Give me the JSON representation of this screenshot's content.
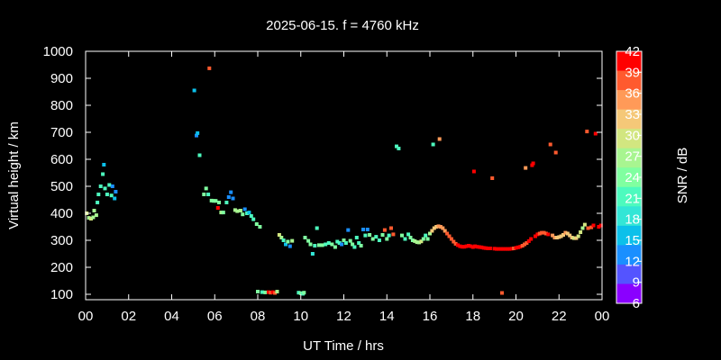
{
  "chart_data": {
    "type": "scatter",
    "title": "2025-06-15. f = 4760 kHz",
    "xlabel": "UT Time / hrs",
    "ylabel": "Virtual height / km",
    "xlim": [
      0,
      24
    ],
    "ylim": [
      80,
      1000
    ],
    "x_ticks": [
      "00",
      "02",
      "04",
      "06",
      "08",
      "10",
      "12",
      "14",
      "16",
      "18",
      "20",
      "22",
      "00"
    ],
    "y_ticks": [
      100,
      200,
      300,
      400,
      500,
      600,
      700,
      800,
      900,
      1000
    ],
    "grid": false,
    "colorbar": {
      "label": "SNR / dB",
      "range": [
        6,
        42
      ],
      "ticks": [
        6,
        9,
        12,
        15,
        18,
        21,
        24,
        27,
        30,
        33,
        36,
        39,
        42
      ],
      "colors": [
        "#8a00ff",
        "#5454ff",
        "#1a8fff",
        "#0cc0ea",
        "#33e6d6",
        "#4dfabe",
        "#80ffa0",
        "#a8f590",
        "#d2e680",
        "#f5c878",
        "#ff9a58",
        "#ff5a2e",
        "#ff0000"
      ]
    },
    "points": [
      {
        "x": 0.05,
        "y": 400,
        "snr": 30
      },
      {
        "x": 0.15,
        "y": 383,
        "snr": 28
      },
      {
        "x": 0.25,
        "y": 380,
        "snr": 29
      },
      {
        "x": 0.35,
        "y": 385,
        "snr": 28
      },
      {
        "x": 0.4,
        "y": 410,
        "snr": 26
      },
      {
        "x": 0.5,
        "y": 393,
        "snr": 27
      },
      {
        "x": 0.55,
        "y": 440,
        "snr": 20
      },
      {
        "x": 0.6,
        "y": 470,
        "snr": 21
      },
      {
        "x": 0.7,
        "y": 500,
        "snr": 22
      },
      {
        "x": 0.8,
        "y": 545,
        "snr": 21
      },
      {
        "x": 0.85,
        "y": 580,
        "snr": 14
      },
      {
        "x": 0.9,
        "y": 492,
        "snr": 20
      },
      {
        "x": 1.0,
        "y": 470,
        "snr": 22
      },
      {
        "x": 1.1,
        "y": 505,
        "snr": 21
      },
      {
        "x": 1.2,
        "y": 466,
        "snr": 20
      },
      {
        "x": 1.25,
        "y": 500,
        "snr": 13
      },
      {
        "x": 1.35,
        "y": 455,
        "snr": 14
      },
      {
        "x": 1.4,
        "y": 480,
        "snr": 12
      },
      {
        "x": 5.05,
        "y": 855,
        "snr": 14
      },
      {
        "x": 5.15,
        "y": 688,
        "snr": 13
      },
      {
        "x": 5.2,
        "y": 697,
        "snr": 14
      },
      {
        "x": 5.3,
        "y": 615,
        "snr": 22
      },
      {
        "x": 5.5,
        "y": 470,
        "snr": 24
      },
      {
        "x": 5.6,
        "y": 492,
        "snr": 23
      },
      {
        "x": 5.7,
        "y": 470,
        "snr": 22
      },
      {
        "x": 5.75,
        "y": 937,
        "snr": 40
      },
      {
        "x": 5.85,
        "y": 447,
        "snr": 25
      },
      {
        "x": 5.95,
        "y": 446,
        "snr": 24
      },
      {
        "x": 6.05,
        "y": 446,
        "snr": 23
      },
      {
        "x": 6.15,
        "y": 420,
        "snr": 42
      },
      {
        "x": 6.2,
        "y": 440,
        "snr": 23
      },
      {
        "x": 6.3,
        "y": 403,
        "snr": 26
      },
      {
        "x": 6.4,
        "y": 403,
        "snr": 25
      },
      {
        "x": 6.55,
        "y": 440,
        "snr": 20
      },
      {
        "x": 6.65,
        "y": 460,
        "snr": 12
      },
      {
        "x": 6.75,
        "y": 478,
        "snr": 13
      },
      {
        "x": 6.85,
        "y": 455,
        "snr": 11
      },
      {
        "x": 6.95,
        "y": 412,
        "snr": 28
      },
      {
        "x": 7.05,
        "y": 408,
        "snr": 27
      },
      {
        "x": 7.2,
        "y": 410,
        "snr": 26
      },
      {
        "x": 7.3,
        "y": 396,
        "snr": 24
      },
      {
        "x": 7.4,
        "y": 415,
        "snr": 13
      },
      {
        "x": 7.5,
        "y": 400,
        "snr": 22
      },
      {
        "x": 7.6,
        "y": 403,
        "snr": 14
      },
      {
        "x": 7.7,
        "y": 390,
        "snr": 22
      },
      {
        "x": 7.8,
        "y": 378,
        "snr": 21
      },
      {
        "x": 7.95,
        "y": 360,
        "snr": 23
      },
      {
        "x": 8.1,
        "y": 350,
        "snr": 24
      },
      {
        "x": 8.0,
        "y": 110,
        "snr": 24
      },
      {
        "x": 8.2,
        "y": 108,
        "snr": 22
      },
      {
        "x": 8.35,
        "y": 107,
        "snr": 24
      },
      {
        "x": 8.5,
        "y": 108,
        "snr": 42
      },
      {
        "x": 8.6,
        "y": 106,
        "snr": 40
      },
      {
        "x": 8.7,
        "y": 108,
        "snr": 41
      },
      {
        "x": 8.8,
        "y": 105,
        "snr": 38
      },
      {
        "x": 8.9,
        "y": 110,
        "snr": 28
      },
      {
        "x": 9.0,
        "y": 320,
        "snr": 29
      },
      {
        "x": 9.1,
        "y": 310,
        "snr": 28
      },
      {
        "x": 9.2,
        "y": 300,
        "snr": 22
      },
      {
        "x": 9.3,
        "y": 285,
        "snr": 14
      },
      {
        "x": 9.4,
        "y": 295,
        "snr": 24
      },
      {
        "x": 9.5,
        "y": 278,
        "snr": 13
      },
      {
        "x": 9.6,
        "y": 298,
        "snr": 27
      },
      {
        "x": 9.9,
        "y": 106,
        "snr": 22
      },
      {
        "x": 10.0,
        "y": 104,
        "snr": 23
      },
      {
        "x": 10.1,
        "y": 102,
        "snr": 21
      },
      {
        "x": 10.15,
        "y": 106,
        "snr": 24
      },
      {
        "x": 10.2,
        "y": 310,
        "snr": 23
      },
      {
        "x": 10.35,
        "y": 298,
        "snr": 24
      },
      {
        "x": 10.45,
        "y": 285,
        "snr": 25
      },
      {
        "x": 10.55,
        "y": 250,
        "snr": 19
      },
      {
        "x": 10.65,
        "y": 280,
        "snr": 22
      },
      {
        "x": 10.75,
        "y": 345,
        "snr": 22
      },
      {
        "x": 10.85,
        "y": 282,
        "snr": 23
      },
      {
        "x": 11.0,
        "y": 282,
        "snr": 24
      },
      {
        "x": 11.15,
        "y": 285,
        "snr": 22
      },
      {
        "x": 11.3,
        "y": 290,
        "snr": 21
      },
      {
        "x": 11.45,
        "y": 285,
        "snr": 23
      },
      {
        "x": 11.6,
        "y": 275,
        "snr": 24
      },
      {
        "x": 11.7,
        "y": 295,
        "snr": 22
      },
      {
        "x": 11.8,
        "y": 290,
        "snr": 20
      },
      {
        "x": 11.9,
        "y": 285,
        "snr": 13
      },
      {
        "x": 12.0,
        "y": 300,
        "snr": 24
      },
      {
        "x": 12.1,
        "y": 290,
        "snr": 21
      },
      {
        "x": 12.2,
        "y": 338,
        "snr": 12
      },
      {
        "x": 12.3,
        "y": 298,
        "snr": 23
      },
      {
        "x": 12.4,
        "y": 285,
        "snr": 24
      },
      {
        "x": 12.5,
        "y": 275,
        "snr": 22
      },
      {
        "x": 12.6,
        "y": 310,
        "snr": 22
      },
      {
        "x": 12.7,
        "y": 290,
        "snr": 21
      },
      {
        "x": 12.8,
        "y": 280,
        "snr": 24
      },
      {
        "x": 12.9,
        "y": 340,
        "snr": 11
      },
      {
        "x": 13.0,
        "y": 318,
        "snr": 20
      },
      {
        "x": 13.1,
        "y": 340,
        "snr": 13
      },
      {
        "x": 13.2,
        "y": 320,
        "snr": 24
      },
      {
        "x": 13.35,
        "y": 305,
        "snr": 23
      },
      {
        "x": 13.5,
        "y": 313,
        "snr": 21
      },
      {
        "x": 13.65,
        "y": 300,
        "snr": 22
      },
      {
        "x": 13.8,
        "y": 320,
        "snr": 23
      },
      {
        "x": 13.9,
        "y": 338,
        "snr": 40
      },
      {
        "x": 14.0,
        "y": 305,
        "snr": 24
      },
      {
        "x": 14.1,
        "y": 318,
        "snr": 20
      },
      {
        "x": 14.2,
        "y": 345,
        "snr": 40
      },
      {
        "x": 14.3,
        "y": 322,
        "snr": 38
      },
      {
        "x": 14.45,
        "y": 648,
        "snr": 20
      },
      {
        "x": 14.55,
        "y": 640,
        "snr": 21
      },
      {
        "x": 14.7,
        "y": 318,
        "snr": 24
      },
      {
        "x": 14.85,
        "y": 305,
        "snr": 22
      },
      {
        "x": 15.0,
        "y": 322,
        "snr": 21
      },
      {
        "x": 15.1,
        "y": 310,
        "snr": 23
      },
      {
        "x": 15.2,
        "y": 300,
        "snr": 25
      },
      {
        "x": 15.3,
        "y": 297,
        "snr": 26
      },
      {
        "x": 15.4,
        "y": 293,
        "snr": 27
      },
      {
        "x": 15.5,
        "y": 292,
        "snr": 28
      },
      {
        "x": 15.6,
        "y": 296,
        "snr": 29
      },
      {
        "x": 15.7,
        "y": 305,
        "snr": 24
      },
      {
        "x": 15.8,
        "y": 318,
        "snr": 22
      },
      {
        "x": 15.9,
        "y": 305,
        "snr": 23
      },
      {
        "x": 16.0,
        "y": 325,
        "snr": 27
      },
      {
        "x": 16.1,
        "y": 335,
        "snr": 32
      },
      {
        "x": 16.15,
        "y": 655,
        "snr": 22
      },
      {
        "x": 16.2,
        "y": 345,
        "snr": 33
      },
      {
        "x": 16.3,
        "y": 350,
        "snr": 34
      },
      {
        "x": 16.4,
        "y": 352,
        "snr": 35
      },
      {
        "x": 16.45,
        "y": 675,
        "snr": 35
      },
      {
        "x": 16.5,
        "y": 350,
        "snr": 35
      },
      {
        "x": 16.6,
        "y": 345,
        "snr": 36
      },
      {
        "x": 16.7,
        "y": 335,
        "snr": 37
      },
      {
        "x": 16.8,
        "y": 325,
        "snr": 38
      },
      {
        "x": 16.9,
        "y": 315,
        "snr": 38
      },
      {
        "x": 17.0,
        "y": 305,
        "snr": 39
      },
      {
        "x": 17.1,
        "y": 295,
        "snr": 40
      },
      {
        "x": 17.2,
        "y": 287,
        "snr": 40
      },
      {
        "x": 17.3,
        "y": 282,
        "snr": 41
      },
      {
        "x": 17.4,
        "y": 278,
        "snr": 41
      },
      {
        "x": 17.5,
        "y": 276,
        "snr": 42
      },
      {
        "x": 17.6,
        "y": 276,
        "snr": 42
      },
      {
        "x": 17.7,
        "y": 278,
        "snr": 41
      },
      {
        "x": 17.8,
        "y": 280,
        "snr": 42
      },
      {
        "x": 17.9,
        "y": 278,
        "snr": 41
      },
      {
        "x": 18.0,
        "y": 275,
        "snr": 42
      },
      {
        "x": 18.1,
        "y": 278,
        "snr": 42
      },
      {
        "x": 18.05,
        "y": 555,
        "snr": 42
      },
      {
        "x": 18.2,
        "y": 276,
        "snr": 41
      },
      {
        "x": 18.3,
        "y": 275,
        "snr": 42
      },
      {
        "x": 18.4,
        "y": 274,
        "snr": 42
      },
      {
        "x": 18.5,
        "y": 272,
        "snr": 41
      },
      {
        "x": 18.6,
        "y": 271,
        "snr": 42
      },
      {
        "x": 18.7,
        "y": 270,
        "snr": 42
      },
      {
        "x": 18.8,
        "y": 270,
        "snr": 41
      },
      {
        "x": 18.9,
        "y": 530,
        "snr": 38
      },
      {
        "x": 19.0,
        "y": 269,
        "snr": 42
      },
      {
        "x": 19.1,
        "y": 268,
        "snr": 42
      },
      {
        "x": 19.2,
        "y": 268,
        "snr": 41
      },
      {
        "x": 19.3,
        "y": 268,
        "snr": 42
      },
      {
        "x": 19.35,
        "y": 105,
        "snr": 38
      },
      {
        "x": 19.4,
        "y": 268,
        "snr": 42
      },
      {
        "x": 19.5,
        "y": 268,
        "snr": 41
      },
      {
        "x": 19.6,
        "y": 268,
        "snr": 42
      },
      {
        "x": 19.7,
        "y": 268,
        "snr": 42
      },
      {
        "x": 19.8,
        "y": 269,
        "snr": 41
      },
      {
        "x": 19.9,
        "y": 270,
        "snr": 40
      },
      {
        "x": 20.0,
        "y": 272,
        "snr": 41
      },
      {
        "x": 20.1,
        "y": 274,
        "snr": 42
      },
      {
        "x": 20.2,
        "y": 276,
        "snr": 41
      },
      {
        "x": 20.3,
        "y": 280,
        "snr": 40
      },
      {
        "x": 20.4,
        "y": 285,
        "snr": 39
      },
      {
        "x": 20.45,
        "y": 568,
        "snr": 35
      },
      {
        "x": 20.5,
        "y": 290,
        "snr": 40
      },
      {
        "x": 20.6,
        "y": 297,
        "snr": 41
      },
      {
        "x": 20.7,
        "y": 305,
        "snr": 42
      },
      {
        "x": 20.75,
        "y": 578,
        "snr": 42
      },
      {
        "x": 20.8,
        "y": 585,
        "snr": 41
      },
      {
        "x": 20.9,
        "y": 315,
        "snr": 42
      },
      {
        "x": 21.0,
        "y": 322,
        "snr": 41
      },
      {
        "x": 21.1,
        "y": 325,
        "snr": 40
      },
      {
        "x": 21.2,
        "y": 328,
        "snr": 40
      },
      {
        "x": 21.3,
        "y": 328,
        "snr": 39
      },
      {
        "x": 21.4,
        "y": 325,
        "snr": 40
      },
      {
        "x": 21.5,
        "y": 322,
        "snr": 41
      },
      {
        "x": 21.6,
        "y": 655,
        "snr": 40
      },
      {
        "x": 21.7,
        "y": 318,
        "snr": 37
      },
      {
        "x": 21.8,
        "y": 310,
        "snr": 35
      },
      {
        "x": 21.85,
        "y": 625,
        "snr": 38
      },
      {
        "x": 21.9,
        "y": 310,
        "snr": 34
      },
      {
        "x": 22.0,
        "y": 312,
        "snr": 33
      },
      {
        "x": 22.1,
        "y": 315,
        "snr": 33
      },
      {
        "x": 22.2,
        "y": 320,
        "snr": 34
      },
      {
        "x": 22.3,
        "y": 328,
        "snr": 35
      },
      {
        "x": 22.4,
        "y": 325,
        "snr": 34
      },
      {
        "x": 22.5,
        "y": 318,
        "snr": 33
      },
      {
        "x": 22.6,
        "y": 310,
        "snr": 32
      },
      {
        "x": 22.7,
        "y": 308,
        "snr": 31
      },
      {
        "x": 22.8,
        "y": 308,
        "snr": 32
      },
      {
        "x": 22.9,
        "y": 315,
        "snr": 31
      },
      {
        "x": 23.0,
        "y": 330,
        "snr": 30
      },
      {
        "x": 23.1,
        "y": 345,
        "snr": 28
      },
      {
        "x": 23.2,
        "y": 358,
        "snr": 29
      },
      {
        "x": 23.3,
        "y": 703,
        "snr": 40
      },
      {
        "x": 23.35,
        "y": 345,
        "snr": 38
      },
      {
        "x": 23.5,
        "y": 348,
        "snr": 40
      },
      {
        "x": 23.6,
        "y": 355,
        "snr": 41
      },
      {
        "x": 23.7,
        "y": 695,
        "snr": 42
      },
      {
        "x": 23.85,
        "y": 350,
        "snr": 42
      },
      {
        "x": 23.95,
        "y": 355,
        "snr": 41
      }
    ]
  }
}
